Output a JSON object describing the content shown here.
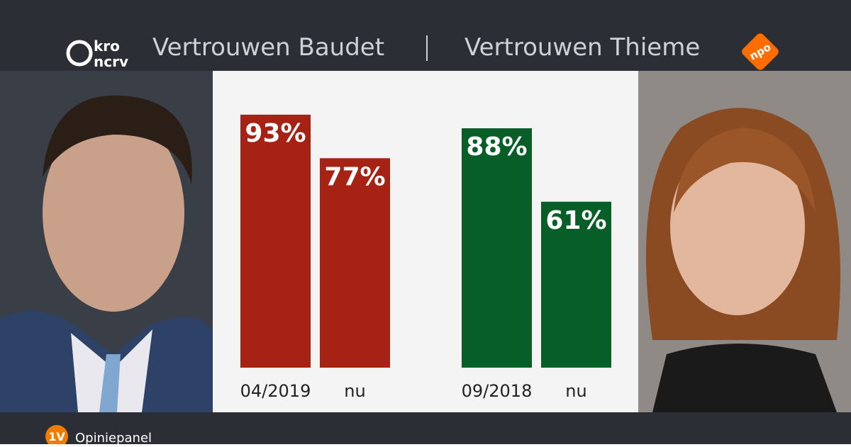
{
  "chart_data": [
    {
      "type": "bar",
      "title": "Vertrouwen Baudet",
      "categories": [
        "04/2019",
        "nu"
      ],
      "values": [
        93,
        77
      ],
      "value_labels": [
        "93%",
        "77%"
      ],
      "color": "#a52214"
    },
    {
      "type": "bar",
      "title": "Vertrouwen Thieme",
      "categories": [
        "09/2018",
        "nu"
      ],
      "values": [
        88,
        61
      ],
      "value_labels": [
        "88%",
        "61%"
      ],
      "color": "#075e26"
    }
  ],
  "branding": {
    "broadcaster": [
      "kro",
      "ncrv"
    ],
    "network": "npo",
    "footer_badge": "1V",
    "footer": "Opiniepanel"
  }
}
